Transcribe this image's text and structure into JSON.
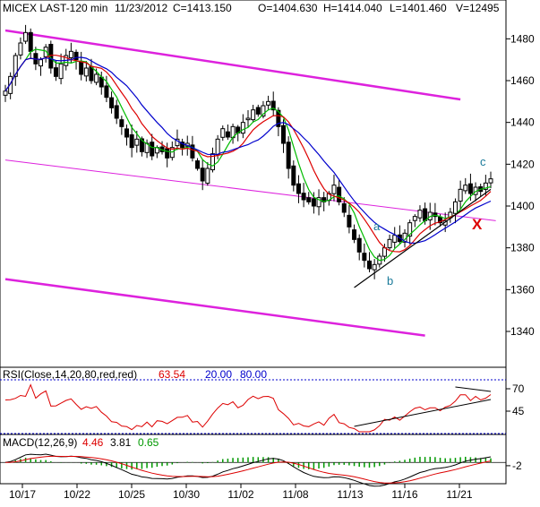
{
  "header": {
    "symbol": "MICEX LAST-120 min",
    "date": "11/23/2012",
    "close": "C=1413.150",
    "open": "O=1404.630",
    "high": "H=1414.040",
    "low": "L=1401.460",
    "volume": "V=12495"
  },
  "rsi_legend": {
    "label": "RSI(Close,14,20,80,red,red)",
    "value": "63.54",
    "lower": "20.00",
    "upper": "80.00"
  },
  "macd_legend": {
    "label": "MACD(12,26,9)",
    "value": "4.46",
    "signal": "3.81",
    "hist": "0.65"
  },
  "annotations": {
    "a": "a",
    "b": "b",
    "c": "c",
    "x": "X"
  },
  "colors": {
    "background": "#ffffff",
    "candles": "#000000",
    "ma_fast": "#00bb00",
    "ma_mid": "#dd0000",
    "ma_slow": "#0000cc",
    "channel": "#dd22dd",
    "rsi": "#dd0000",
    "rsi_band": "#0000cc",
    "macd_hist": "#009900",
    "macd_signal": "#dd0000",
    "x_mark": "#dd0000",
    "labels": "#1a7a9a"
  },
  "chart_data": [
    {
      "type": "candlestick",
      "title": "MICEX LAST-120 min",
      "x_tick_labels": [
        "10/17",
        "10/22",
        "10/25",
        "10/30",
        "11/02",
        "11/08",
        "11/13",
        "11/16",
        "11/21"
      ],
      "y_tick_labels": [
        "1340",
        "1360",
        "1380",
        "1400",
        "1420",
        "1440",
        "1460",
        "1480"
      ],
      "ylim": [
        1325,
        1490
      ],
      "grid": false,
      "close_series": [
        1455,
        1462,
        1472,
        1478,
        1483,
        1474,
        1468,
        1470,
        1476,
        1466,
        1462,
        1468,
        1472,
        1474,
        1470,
        1463,
        1466,
        1460,
        1463,
        1457,
        1452,
        1447,
        1442,
        1438,
        1433,
        1428,
        1432,
        1426,
        1430,
        1424,
        1428,
        1426,
        1423,
        1428,
        1432,
        1428,
        1430,
        1423,
        1418,
        1412,
        1418,
        1425,
        1432,
        1437,
        1433,
        1438,
        1435,
        1440,
        1442,
        1446,
        1444,
        1448,
        1450,
        1446,
        1438,
        1430,
        1418,
        1410,
        1406,
        1403,
        1402,
        1400,
        1404,
        1402,
        1406,
        1410,
        1402,
        1397,
        1390,
        1384,
        1378,
        1374,
        1370,
        1372,
        1376,
        1380,
        1384,
        1386,
        1383,
        1387,
        1392,
        1395,
        1398,
        1393,
        1397,
        1395,
        1392,
        1393,
        1397,
        1402,
        1408,
        1410,
        1406,
        1409,
        1407,
        1411,
        1413
      ],
      "moving_averages": [
        {
          "name": "fast",
          "color": "#00bb00"
        },
        {
          "name": "mid",
          "color": "#dd0000"
        },
        {
          "name": "slow",
          "color": "#0000cc"
        }
      ],
      "channel_lines": [
        {
          "points": [
            [
              0,
              1484
            ],
            [
              90,
              1451
            ]
          ]
        },
        {
          "points": [
            [
              0,
              1422
            ],
            [
              97,
              1393
            ]
          ]
        },
        {
          "points": [
            [
              0,
              1365
            ],
            [
              83,
              1338
            ]
          ]
        }
      ],
      "trendline": {
        "points": [
          [
            69,
            1361
          ],
          [
            96,
            1408
          ]
        ]
      }
    },
    {
      "type": "line",
      "title": "RSI(Close,14,20,80,red,red)",
      "y_tick_labels": [
        "45",
        "70"
      ],
      "ylim": [
        20,
        80
      ],
      "last_value": 63.54,
      "bands": [
        20,
        80
      ],
      "trendline": {
        "points": [
          [
            69,
            28
          ],
          [
            96,
            58
          ]
        ]
      },
      "upper_trendline": {
        "points": [
          [
            89,
            72
          ],
          [
            96,
            67
          ]
        ]
      }
    },
    {
      "type": "bar",
      "title": "MACD(12,26,9)",
      "y_tick_labels": [
        "-2"
      ],
      "ylim": [
        -12,
        9
      ],
      "last_values": {
        "macd": 4.46,
        "signal": 3.81,
        "hist": 0.65
      }
    }
  ]
}
